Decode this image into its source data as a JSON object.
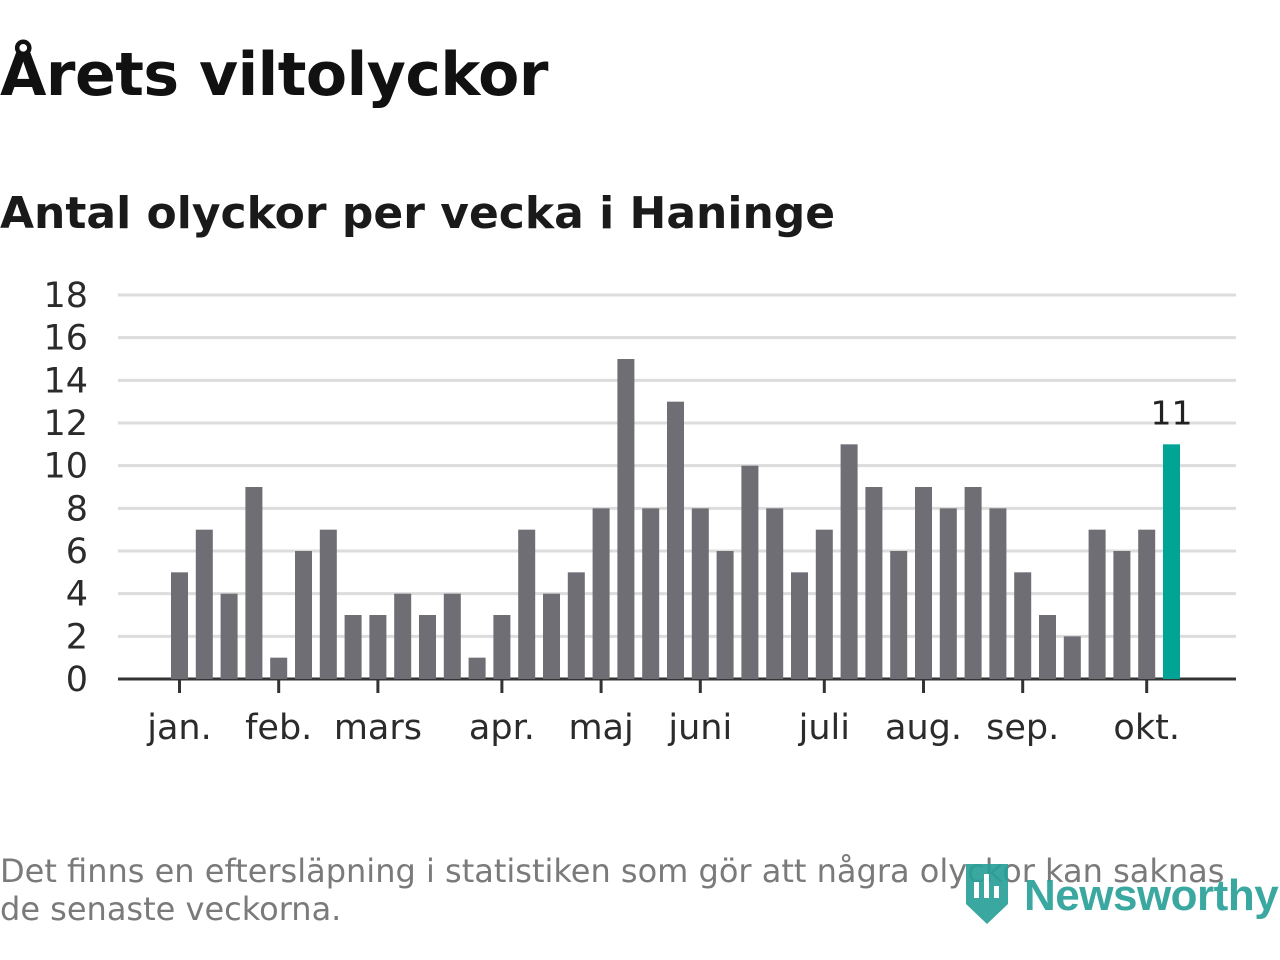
{
  "title": "Årets viltolyckor",
  "subtitle": "Antal olyckor per vecka i Haninge",
  "footnote": "Det finns en eftersläpning i statistiken som gör att några olyckor kan saknas de senaste veckorna.",
  "logo": {
    "text": "Newsworthy",
    "icon": "newsworthy-bar-icon"
  },
  "colors": {
    "bar": "#6e6e74",
    "highlight": "#00a394",
    "grid": "#dcdcdc",
    "axis": "#333333",
    "brand": "#2aa198"
  },
  "chart_data": {
    "type": "bar",
    "title": "Antal olyckor per vecka i Haninge",
    "xlabel": "",
    "ylabel": "",
    "ylim": [
      0,
      18
    ],
    "yticks": [
      0,
      2,
      4,
      6,
      8,
      10,
      12,
      14,
      16,
      18
    ],
    "grid": true,
    "x_ticks": [
      {
        "label": "jan.",
        "index": 0
      },
      {
        "label": "feb.",
        "index": 4
      },
      {
        "label": "mars",
        "index": 8
      },
      {
        "label": "apr.",
        "index": 13
      },
      {
        "label": "maj",
        "index": 17
      },
      {
        "label": "juni",
        "index": 21
      },
      {
        "label": "juli",
        "index": 26
      },
      {
        "label": "aug.",
        "index": 30
      },
      {
        "label": "sep.",
        "index": 34
      },
      {
        "label": "okt.",
        "index": 39
      }
    ],
    "values": [
      5,
      7,
      4,
      9,
      1,
      6,
      7,
      3,
      3,
      4,
      3,
      4,
      1,
      3,
      7,
      4,
      5,
      8,
      15,
      8,
      13,
      8,
      6,
      10,
      8,
      5,
      7,
      11,
      9,
      6,
      9,
      8,
      9,
      8,
      5,
      3,
      2,
      7,
      6,
      7,
      11
    ],
    "highlight_index": 40,
    "highlight_label": "11"
  }
}
